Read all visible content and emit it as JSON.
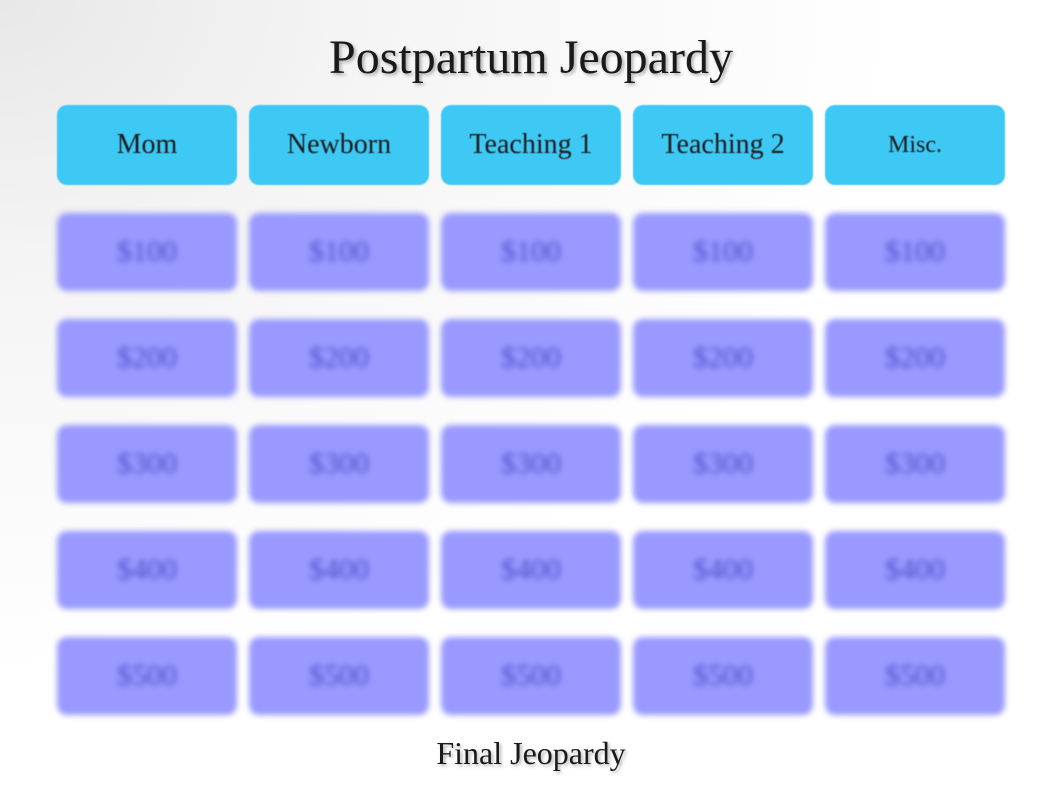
{
  "title": "Postpartum Jeopardy",
  "final_label": "Final Jeopardy",
  "colors": {
    "category_bg": "#3ec9f5",
    "category_text": "#1a1a1a",
    "value_bg": "#9999ff",
    "value_text": "#4d4dcc",
    "title_text": "#1a1a1a"
  },
  "categories": [
    {
      "label": "Mom",
      "small": false
    },
    {
      "label": "Newborn",
      "small": false
    },
    {
      "label": "Teaching 1",
      "small": false
    },
    {
      "label": "Teaching 2",
      "small": false
    },
    {
      "label": "Misc.",
      "small": true
    }
  ],
  "values": [
    "$100",
    "$200",
    "$300",
    "$400",
    "$500"
  ]
}
